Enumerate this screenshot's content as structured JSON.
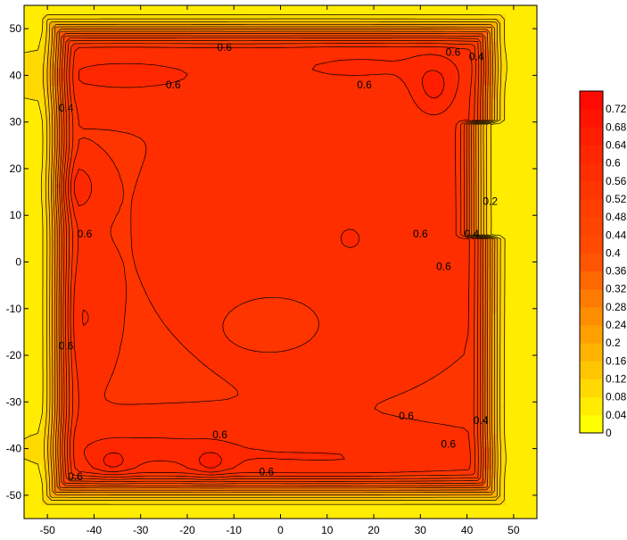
{
  "chart_data": {
    "type": "heatmap",
    "subtype": "filled-contour",
    "title": "",
    "xlabel": "",
    "ylabel": "",
    "xlim": [
      -55,
      55
    ],
    "ylim": [
      -55,
      55
    ],
    "x_ticks": [
      -50,
      -40,
      -30,
      -20,
      -10,
      0,
      10,
      20,
      30,
      40,
      50
    ],
    "y_ticks": [
      -50,
      -40,
      -30,
      -20,
      -10,
      0,
      10,
      20,
      30,
      40,
      50
    ],
    "x_tick_labels": [
      "-50",
      "-40",
      "-30",
      "-20",
      "-10",
      "0",
      "10",
      "20",
      "30",
      "40",
      "50"
    ],
    "y_tick_labels": [
      "-50",
      "-40",
      "-30",
      "-20",
      "-10",
      "0",
      "10",
      "20",
      "30",
      "40",
      "50"
    ],
    "levels": [
      0,
      0.04,
      0.08,
      0.12,
      0.16,
      0.2,
      0.24,
      0.28,
      0.32,
      0.36,
      0.4,
      0.44,
      0.48,
      0.52,
      0.56,
      0.6,
      0.64,
      0.68,
      0.72
    ],
    "level_labels": [
      "0",
      "0.04",
      "0.08",
      "0.12",
      "0.16",
      "0.2",
      "0.24",
      "0.28",
      "0.32",
      "0.36",
      "0.4",
      "0.44",
      "0.48",
      "0.52",
      "0.56",
      "0.6",
      "0.64",
      "0.68",
      "0.72"
    ],
    "level_colors": [
      "#ffff00",
      "#ffec00",
      "#ffd900",
      "#ffc600",
      "#ffb300",
      "#ffa000",
      "#ff8d00",
      "#ff7a00",
      "#ff6700",
      "#ff5400",
      "#ff4a00",
      "#ff4400",
      "#ff3e00",
      "#ff3500",
      "#ff2e00",
      "#ff2700",
      "#ff1e00",
      "#ff1400",
      "#ff0a00"
    ],
    "contour_labels": [
      {
        "text": "0.6",
        "x": -12,
        "y": 46
      },
      {
        "text": "0.6",
        "x": -23,
        "y": 38
      },
      {
        "text": "0.6",
        "x": 18,
        "y": 38
      },
      {
        "text": "0.6",
        "x": 37,
        "y": 45
      },
      {
        "text": "0.4",
        "x": 42,
        "y": 44
      },
      {
        "text": "0.4",
        "x": -46,
        "y": 33
      },
      {
        "text": "0.6",
        "x": -42,
        "y": 6
      },
      {
        "text": "0.6",
        "x": 30,
        "y": 6
      },
      {
        "text": "0.6",
        "x": 35,
        "y": -1
      },
      {
        "text": "0.4",
        "x": 41,
        "y": 6
      },
      {
        "text": "0.2",
        "x": 45,
        "y": 13
      },
      {
        "text": "0.6",
        "x": -46,
        "y": -18
      },
      {
        "text": "0.6",
        "x": 27,
        "y": -33
      },
      {
        "text": "0.4",
        "x": 43,
        "y": -34
      },
      {
        "text": "0.6",
        "x": -13,
        "y": -37
      },
      {
        "text": "0.6",
        "x": 36,
        "y": -39
      },
      {
        "text": "0.6",
        "x": -44,
        "y": -46
      },
      {
        "text": "0.6",
        "x": -3,
        "y": -45
      }
    ],
    "grid": false,
    "legend": "colorbar-right"
  }
}
